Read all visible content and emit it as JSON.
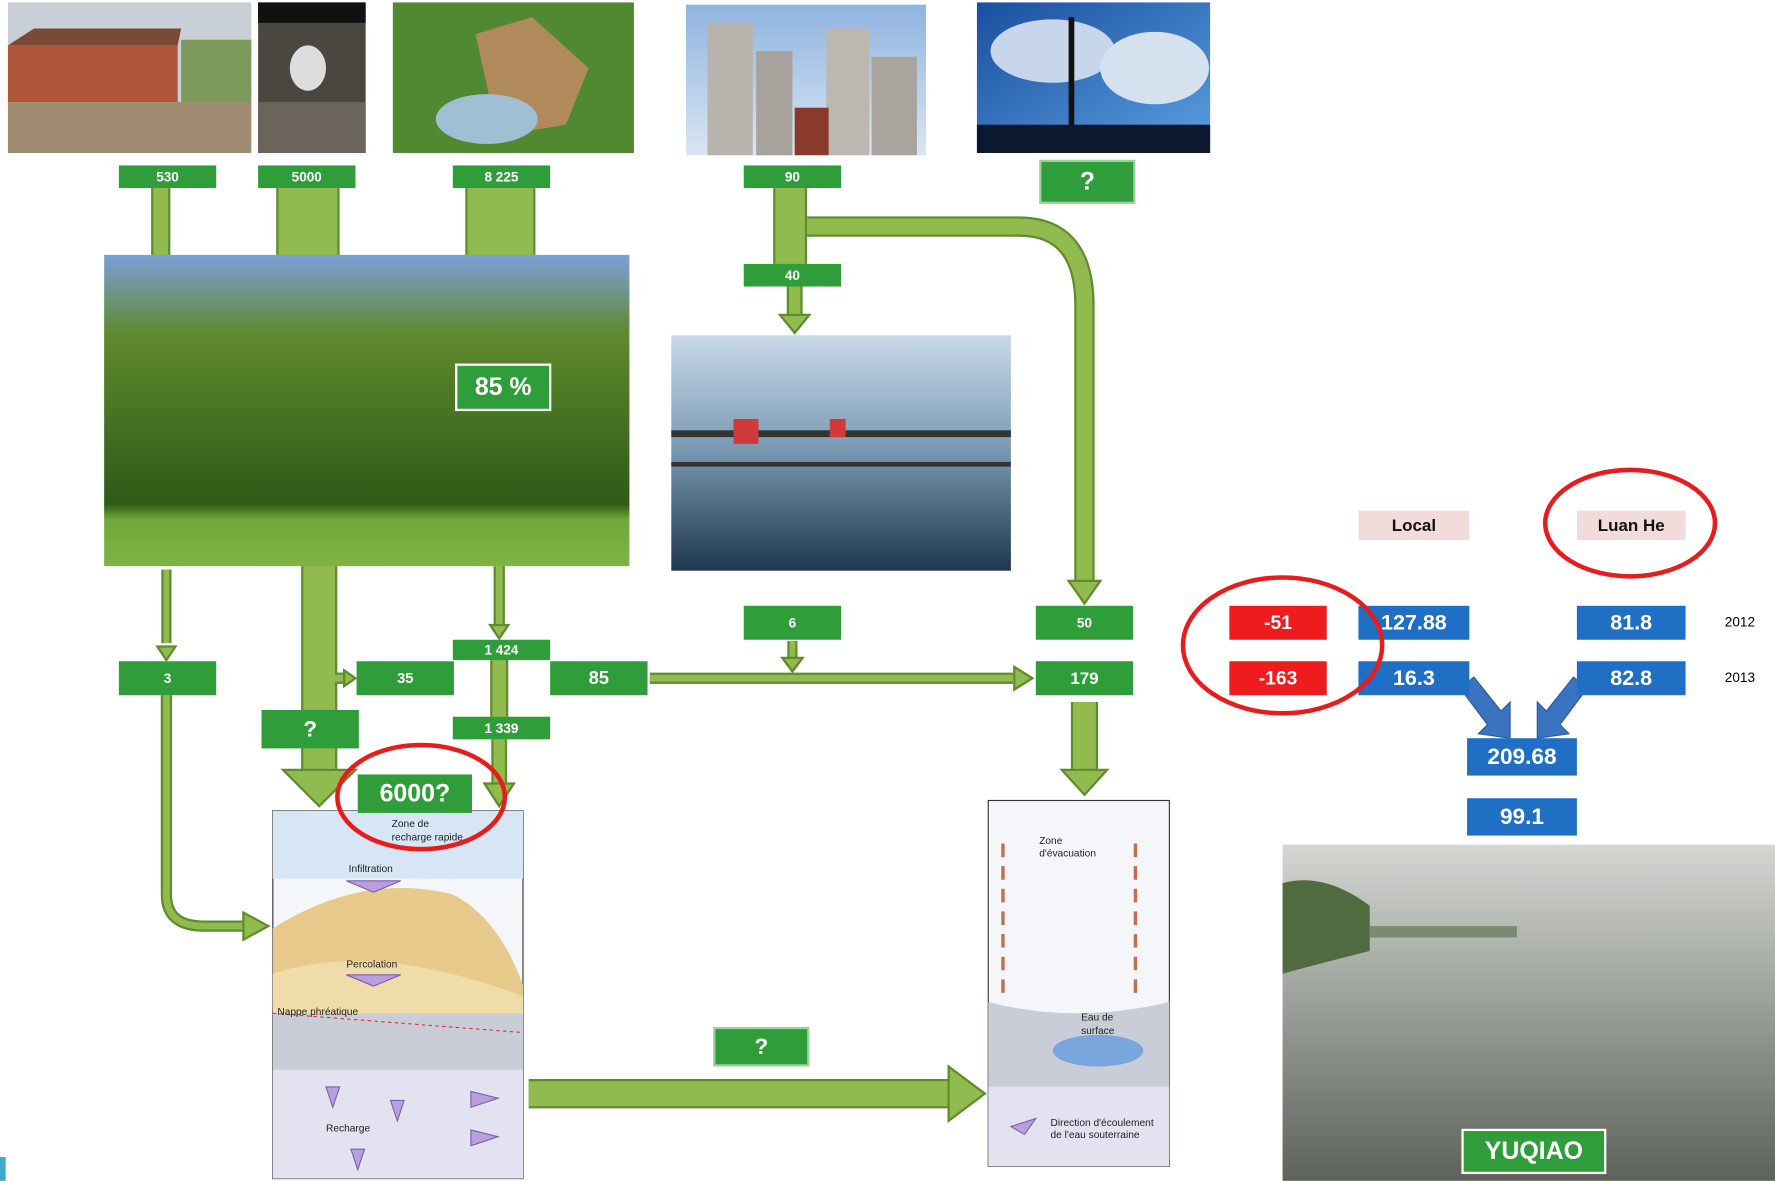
{
  "inputs": {
    "farm": "530",
    "manure": "5000",
    "fertilizer": "8 225",
    "city": "90",
    "industry": "?"
  },
  "city_to_treatment": "40",
  "crop_share": "85 %",
  "flows": {
    "runoff": "3",
    "leaching": "?",
    "to_river": "35",
    "upper": "1 424",
    "lower": "1 339",
    "river": "85",
    "treatment_out": "6",
    "city_direct": "50",
    "total": "179",
    "groundwater_recharge": "6000?",
    "groundwater_flow": "?"
  },
  "reservoir_table": {
    "headers": [
      "Local",
      "Luan He"
    ],
    "rows": [
      {
        "year": "2012",
        "balance": "-51",
        "local": "127.88",
        "luan_he": "81.8"
      },
      {
        "year": "2013",
        "balance": "-163",
        "local": "16.3",
        "luan_he": "82.8"
      }
    ],
    "sum": "209.68",
    "outflow": "99.1"
  },
  "reservoir_name": "YUQIAO",
  "recharge_diagram": {
    "zone": [
      "Zone de",
      "recharge rapide"
    ],
    "infiltration": "Infiltration",
    "percolation": "Percolation",
    "water_table": "Nappe phréatique",
    "recharge": "Recharge"
  },
  "discharge_diagram": {
    "zone": [
      "Zone",
      "d'évacuation"
    ],
    "surface_water": [
      "Eau de",
      "surface"
    ],
    "flow_direction": [
      "Direction d'écoulement",
      "de l'eau souterraine"
    ]
  }
}
